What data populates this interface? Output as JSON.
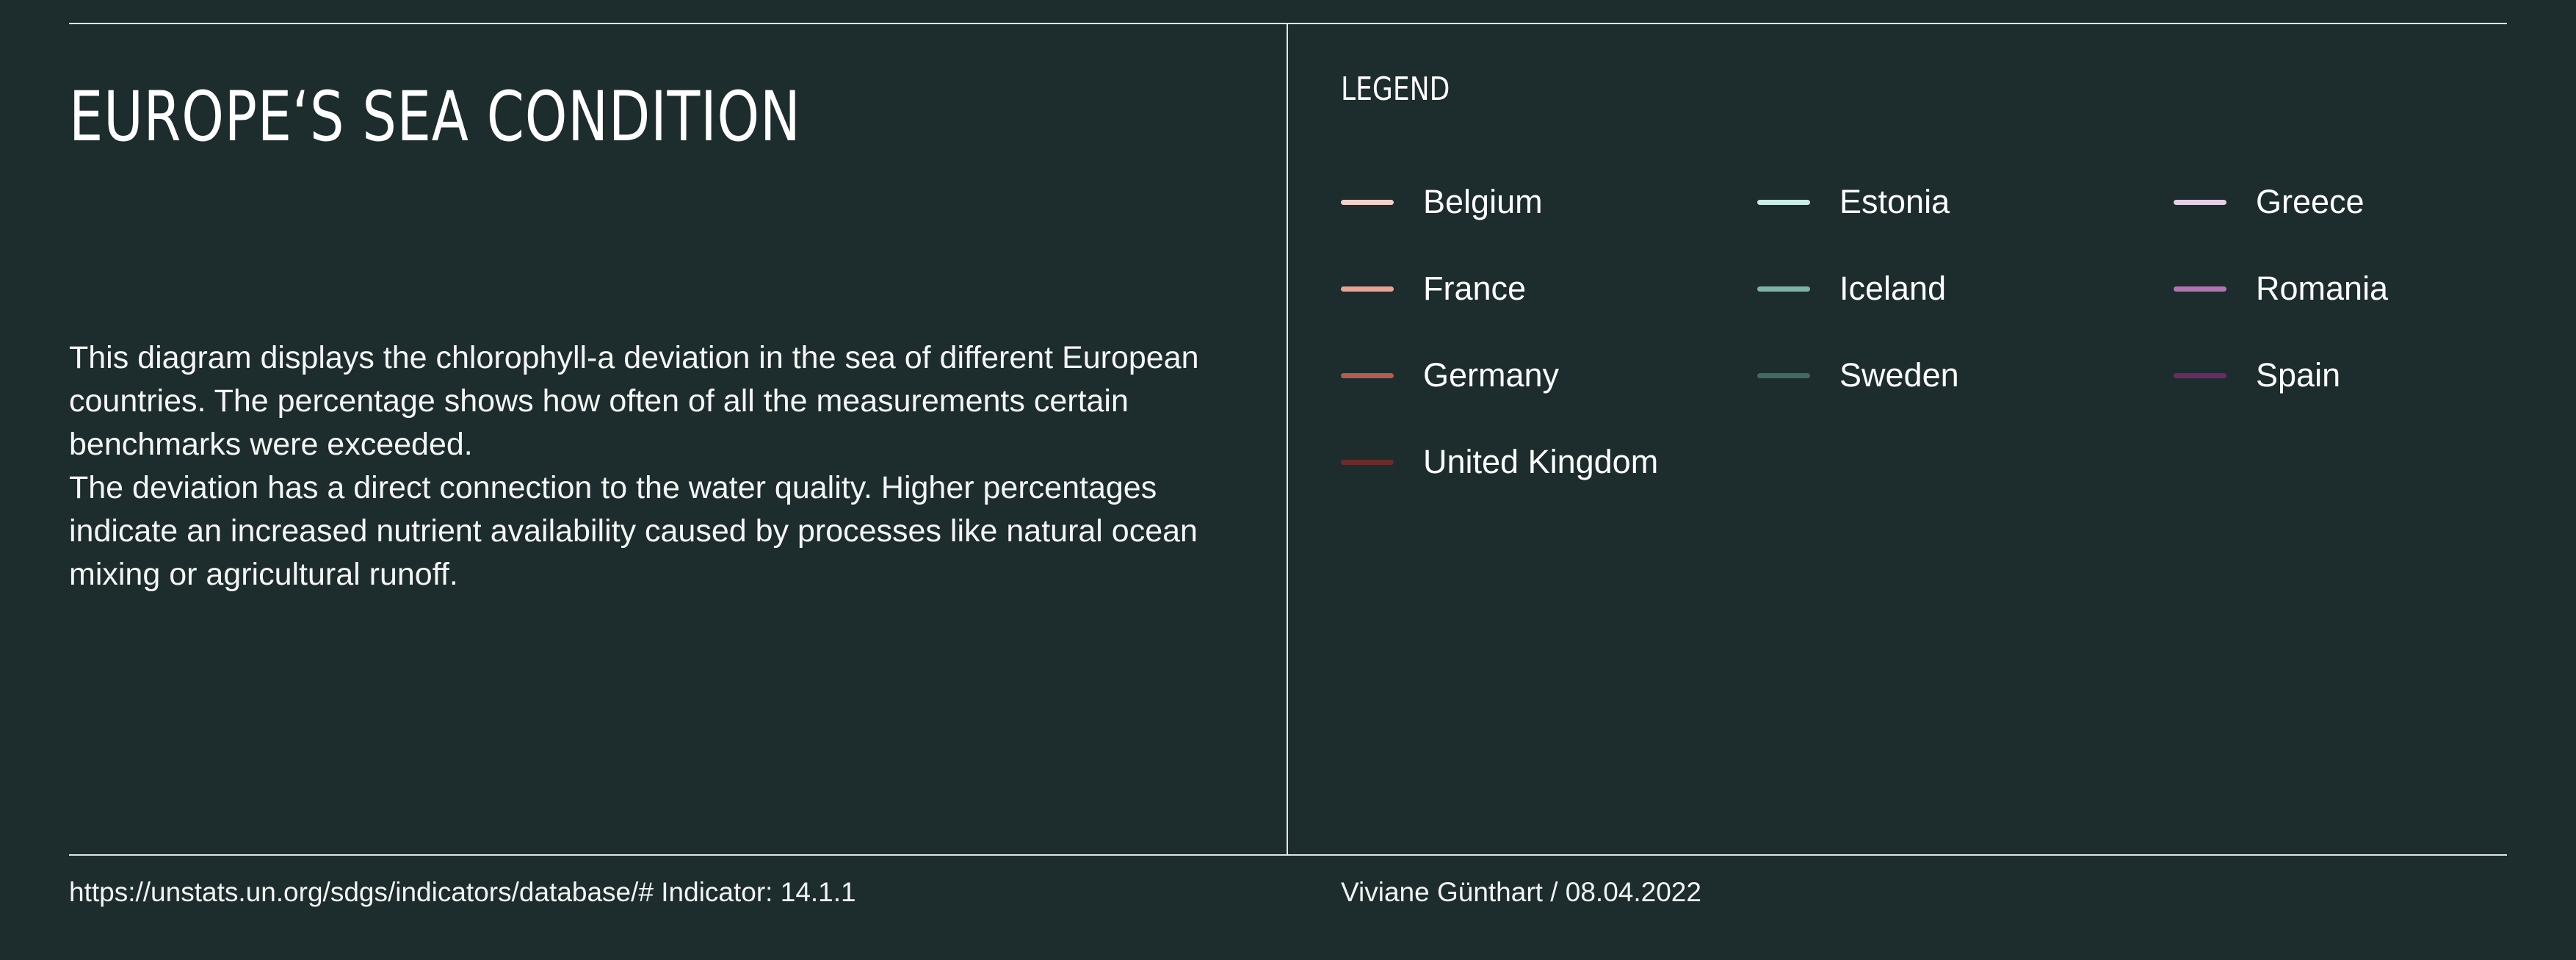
{
  "title": "EUROPE‘S SEA CONDITION",
  "description": [
    "This diagram displays the chlorophyll-a deviation in the sea of different European countries. The percentage shows how often of all the measurements certain benchmarks were exceeded.",
    "The deviation has a direct connection to the water quality. Higher percentages indicate an increased nutrient availability caused by processes like natural ocean mixing or agricultural runoff."
  ],
  "legend": {
    "title": "LEGEND",
    "items": [
      {
        "label": "Belgium",
        "color": "#f4d1c8"
      },
      {
        "label": "Estonia",
        "color": "#c9ede4"
      },
      {
        "label": "Greece",
        "color": "#e3cfe6"
      },
      {
        "label": "France",
        "color": "#e6a396"
      },
      {
        "label": "Iceland",
        "color": "#7fb3aa"
      },
      {
        "label": "Romania",
        "color": "#b374b1"
      },
      {
        "label": "Germany",
        "color": "#b65b4f"
      },
      {
        "label": "Sweden",
        "color": "#3f6b5f"
      },
      {
        "label": "Spain",
        "color": "#6b2a66"
      },
      {
        "label": "United Kingdom",
        "color": "#6b2b2b"
      }
    ]
  },
  "footer": {
    "source": "https://unstats.un.org/sdgs/indicators/database/# Indicator: 14.1.1",
    "author": "Viviane Günthart / 08.04.2022"
  },
  "colors": {
    "background": "#1d2c2c",
    "rule": "#dfe6e4",
    "text": "#ffffff"
  }
}
